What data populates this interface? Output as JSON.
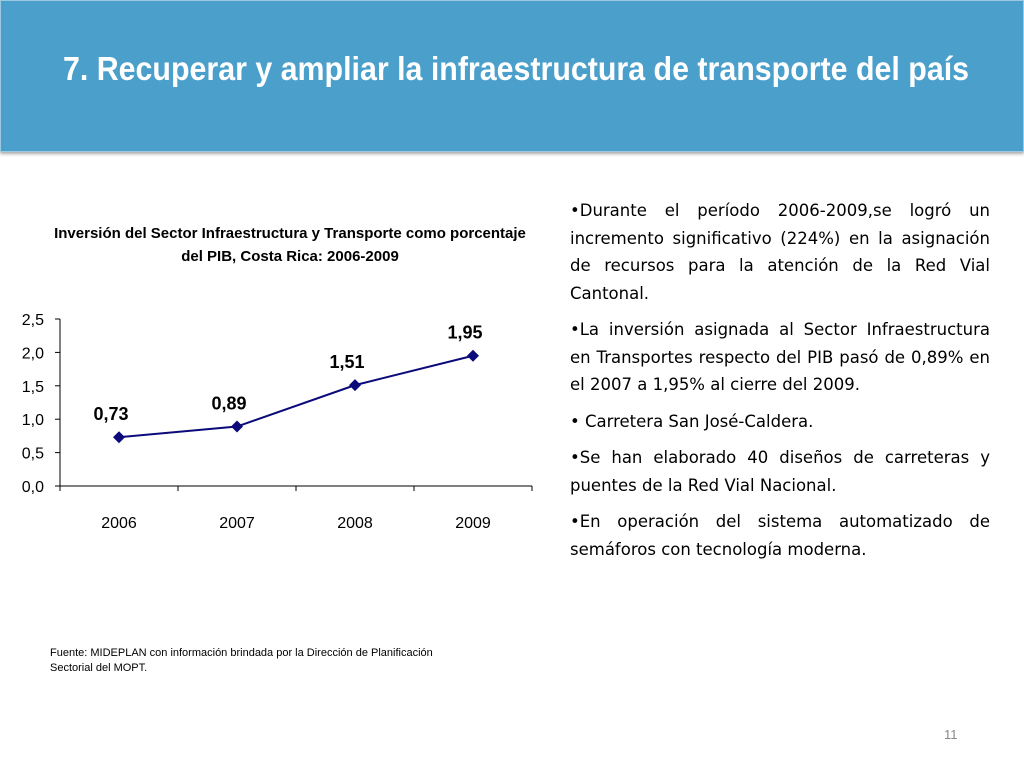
{
  "title": "7. Recuperar y ampliar la infraestructura de transporte del país",
  "chart_data": {
    "type": "line",
    "title": "Inversión del Sector Infraestructura y Transporte como porcentaje del PIB, Costa Rica: 2006-2009",
    "categories": [
      "2006",
      "2007",
      "2008",
      "2009"
    ],
    "values": [
      0.73,
      0.89,
      1.51,
      1.95
    ],
    "data_labels": [
      "0,73",
      "0,89",
      "1,51",
      "1,95"
    ],
    "y_ticks": [
      "0,0",
      "0,5",
      "1,0",
      "1,5",
      "2,0",
      "2,5"
    ],
    "ylim": [
      0,
      2.5
    ],
    "grid": false,
    "legend": "none",
    "color": "#0a0a7a"
  },
  "source": "Fuente:  MIDEPLAN con información brindada por la  Dirección de Planificación Sectorial del MOPT.",
  "bullets": [
    "•Durante el período 2006-2009,se logró un incremento significativo (224%) en la asignación de recursos para la atención de la Red Vial Cantonal.",
    "•La inversión asignada al Sector Infraestructura en Transportes  respecto del PIB pasó de 0,89% en el  2007 a 1,95%  al cierre del  2009.",
    "• Carretera San José-Caldera.",
    "•Se han elaborado 40 diseños de carreteras y puentes de la Red Vial Nacional.",
    "•En operación del sistema automatizado de semáforos con tecnología moderna."
  ],
  "page_number": "11"
}
